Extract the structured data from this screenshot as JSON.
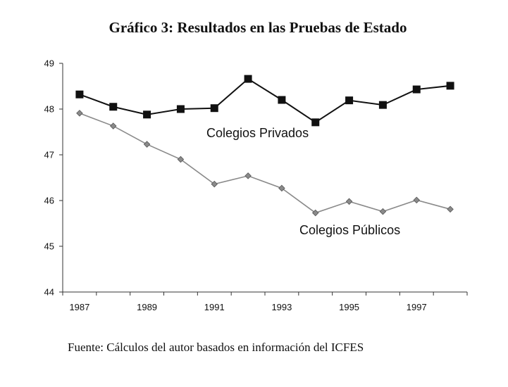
{
  "title": "Gráfico 3: Resultados en las Pruebas de Estado",
  "source_note": "Fuente: Cálculos del autor basados en información del ICFES",
  "colors": {
    "privados_line": "#111111",
    "privados_marker": "#111111",
    "publicos_line": "#8a8a8a",
    "publicos_marker": "#8a8a8a",
    "axis": "#333333"
  },
  "chart_data": {
    "type": "line",
    "title": "Gráfico 3: Resultados en las Pruebas de Estado",
    "xlabel": "",
    "ylabel": "",
    "x": [
      1987,
      1988,
      1989,
      1990,
      1991,
      1992,
      1993,
      1994,
      1995,
      1996,
      1997,
      1998
    ],
    "x_tick_labels": [
      "1987",
      "1989",
      "1991",
      "1993",
      "1995",
      "1997"
    ],
    "y_tick_labels": [
      "44",
      "45",
      "46",
      "47",
      "48",
      "49"
    ],
    "ylim": [
      44,
      49
    ],
    "xlim": [
      1986.5,
      1998.5
    ],
    "grid": false,
    "legend": "inline labels",
    "series": [
      {
        "name": "Colegios Privados",
        "marker": "square",
        "values": [
          48.32,
          48.05,
          47.88,
          48.0,
          48.02,
          48.66,
          48.2,
          47.71,
          48.19,
          48.09,
          48.43,
          48.51
        ]
      },
      {
        "name": "Colegios Públicos",
        "marker": "diamond",
        "values": [
          47.91,
          47.63,
          47.23,
          46.9,
          46.36,
          46.54,
          46.27,
          45.73,
          45.98,
          45.76,
          46.01,
          45.81
        ]
      }
    ]
  }
}
